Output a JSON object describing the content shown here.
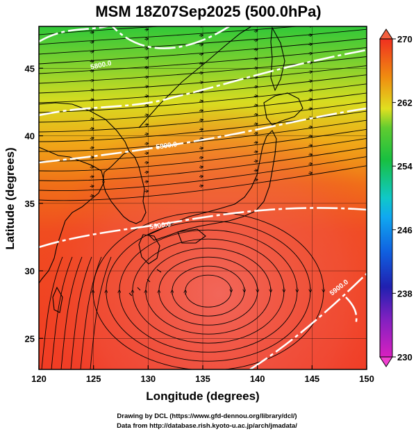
{
  "title": "MSM 18Z07Sep2025 (500.0hPa)",
  "xlabel": "Longitude (degrees)",
  "ylabel": "Latitude  (degrees)",
  "x_ticks": [
    "120",
    "125",
    "130",
    "135",
    "140",
    "145",
    "150"
  ],
  "y_ticks": [
    "25",
    "30",
    "35",
    "40",
    "45"
  ],
  "colorbar": {
    "labels": [
      "270",
      "262",
      "254",
      "246",
      "238",
      "230"
    ],
    "min": 230,
    "max": 270,
    "colors": {
      "230": "#e020c8",
      "236": "#2020b8",
      "242": "#1890f0",
      "246": "#10c8d0",
      "254": "#20c040",
      "258": "#80d030",
      "262": "#e0e020",
      "266": "#f08010",
      "270": "#f03020"
    }
  },
  "contours": [
    {
      "label": "5800.0"
    },
    {
      "label": "5800.0"
    },
    {
      "label": "5900.0"
    },
    {
      "label": "5900.0"
    }
  ],
  "credits": {
    "line1": "Drawing by DCL (https://www.gfd-dennou.org/library/dcl/)",
    "line2": "Data from http://database.rish.kyoto-u.ac.jp/arch/jmadata/"
  }
}
